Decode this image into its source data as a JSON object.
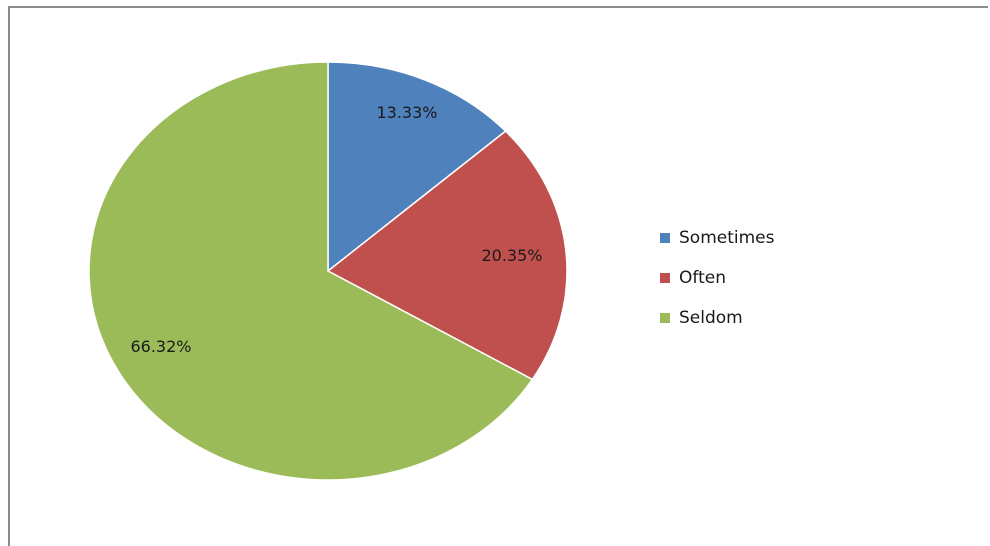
{
  "chart_data": {
    "type": "pie",
    "categories": [
      "Sometimes",
      "Often",
      "Seldom"
    ],
    "values": [
      13.33,
      20.35,
      66.32
    ],
    "labels": [
      "13.33%",
      "20.35%",
      "66.32%"
    ],
    "colors": [
      "#4f81bd",
      "#c0504d",
      "#9bbb59"
    ],
    "legend_position": "right"
  },
  "legend": {
    "items": [
      {
        "label": "Sometimes",
        "color": "#4f81bd"
      },
      {
        "label": "Often",
        "color": "#c0504d"
      },
      {
        "label": "Seldom",
        "color": "#9bbb59"
      }
    ]
  }
}
